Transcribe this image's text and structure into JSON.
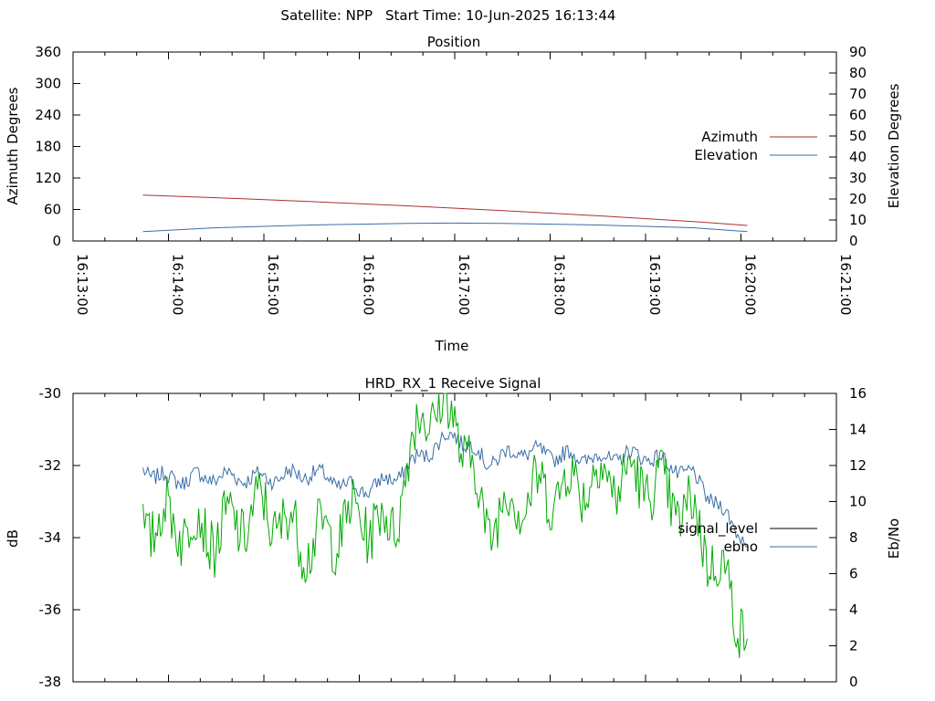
{
  "header": {
    "satellite_label": "Satellite: NPP",
    "start_time_label": "Start Time: 10-Jun-2025 16:13:44"
  },
  "chart_data": [
    {
      "type": "line",
      "title": "Position",
      "xlabel": "Time",
      "ylabel": "Azimuth Degrees",
      "y2label": "Elevation Degrees",
      "x_ticks": [
        "16:13:00",
        "16:14:00",
        "16:15:00",
        "16:16:00",
        "16:17:00",
        "16:18:00",
        "16:19:00",
        "16:20:00",
        "16:21:00"
      ],
      "xlim": [
        "16:13:00",
        "16:21:00"
      ],
      "ylim": [
        0,
        360
      ],
      "y_ticks": [
        "0",
        "60",
        "120",
        "180",
        "240",
        "300",
        "360"
      ],
      "y2lim": [
        0,
        90
      ],
      "y2_ticks": [
        "0",
        "10",
        "20",
        "30",
        "40",
        "50",
        "60",
        "70",
        "80",
        "90"
      ],
      "legend_position": "right",
      "series": [
        {
          "name": "Azimuth",
          "axis": "left",
          "color": "#a83232",
          "x": [
            "16:13:44",
            "16:14:30",
            "16:15:30",
            "16:16:30",
            "16:17:30",
            "16:18:30",
            "16:19:30",
            "16:20:04"
          ],
          "values": [
            87.5,
            82.5,
            75,
            67,
            58,
            48,
            37,
            29.5
          ]
        },
        {
          "name": "Elevation",
          "axis": "right",
          "color": "#3a6ea5",
          "x": [
            "16:13:44",
            "16:14:30",
            "16:15:30",
            "16:16:30",
            "16:17:00",
            "16:17:30",
            "16:18:30",
            "16:19:30",
            "16:20:04"
          ],
          "values": [
            4.5,
            6.3,
            7.6,
            8.4,
            8.5,
            8.4,
            7.6,
            6.3,
            4.5
          ]
        }
      ]
    },
    {
      "type": "line",
      "title": "HRD_RX_1 Receive Signal",
      "ylabel": "dB",
      "y2label": "Eb/No",
      "xlim": [
        "16:13:00",
        "16:21:00"
      ],
      "ylim": [
        -38,
        -30
      ],
      "y_ticks": [
        "-30",
        "-32",
        "-34",
        "-36",
        "-38"
      ],
      "y2lim": [
        0,
        16
      ],
      "y2_ticks": [
        "0",
        "2",
        "4",
        "6",
        "8",
        "10",
        "12",
        "14",
        "16"
      ],
      "legend_position": "right",
      "legend": [
        {
          "name": "signal_level",
          "color": "#000000"
        },
        {
          "name": "ebno",
          "color": "#3a6ea5"
        }
      ],
      "series": [
        {
          "name": "ebno",
          "axis": "right",
          "color": "#3a6ea5",
          "x": [
            "16:13:44",
            "16:14:00",
            "16:14:30",
            "16:15:00",
            "16:15:30",
            "16:16:00",
            "16:16:20",
            "16:16:40",
            "16:17:00",
            "16:17:20",
            "16:17:40",
            "16:18:00",
            "16:18:30",
            "16:19:00",
            "16:19:30",
            "16:20:04"
          ],
          "values": [
            11.8,
            11.2,
            11.4,
            11.3,
            11.6,
            10.6,
            11.2,
            12.6,
            13.8,
            12.2,
            12.8,
            12.6,
            12.4,
            12.6,
            11.4,
            7.8
          ]
        },
        {
          "name": "",
          "axis": "right",
          "color": "#00aa00",
          "x": [
            "16:13:44",
            "16:14:00",
            "16:14:30",
            "16:15:00",
            "16:15:30",
            "16:16:00",
            "16:16:20",
            "16:16:40",
            "16:17:00",
            "16:17:20",
            "16:17:40",
            "16:18:00",
            "16:18:30",
            "16:19:00",
            "16:19:30",
            "16:20:04"
          ],
          "values": [
            8.8,
            9.0,
            8.2,
            9.6,
            7.6,
            9.2,
            8.4,
            15.2,
            14.8,
            8.8,
            10.2,
            10.6,
            11.4,
            11.2,
            9.2,
            2.8
          ]
        }
      ]
    }
  ]
}
